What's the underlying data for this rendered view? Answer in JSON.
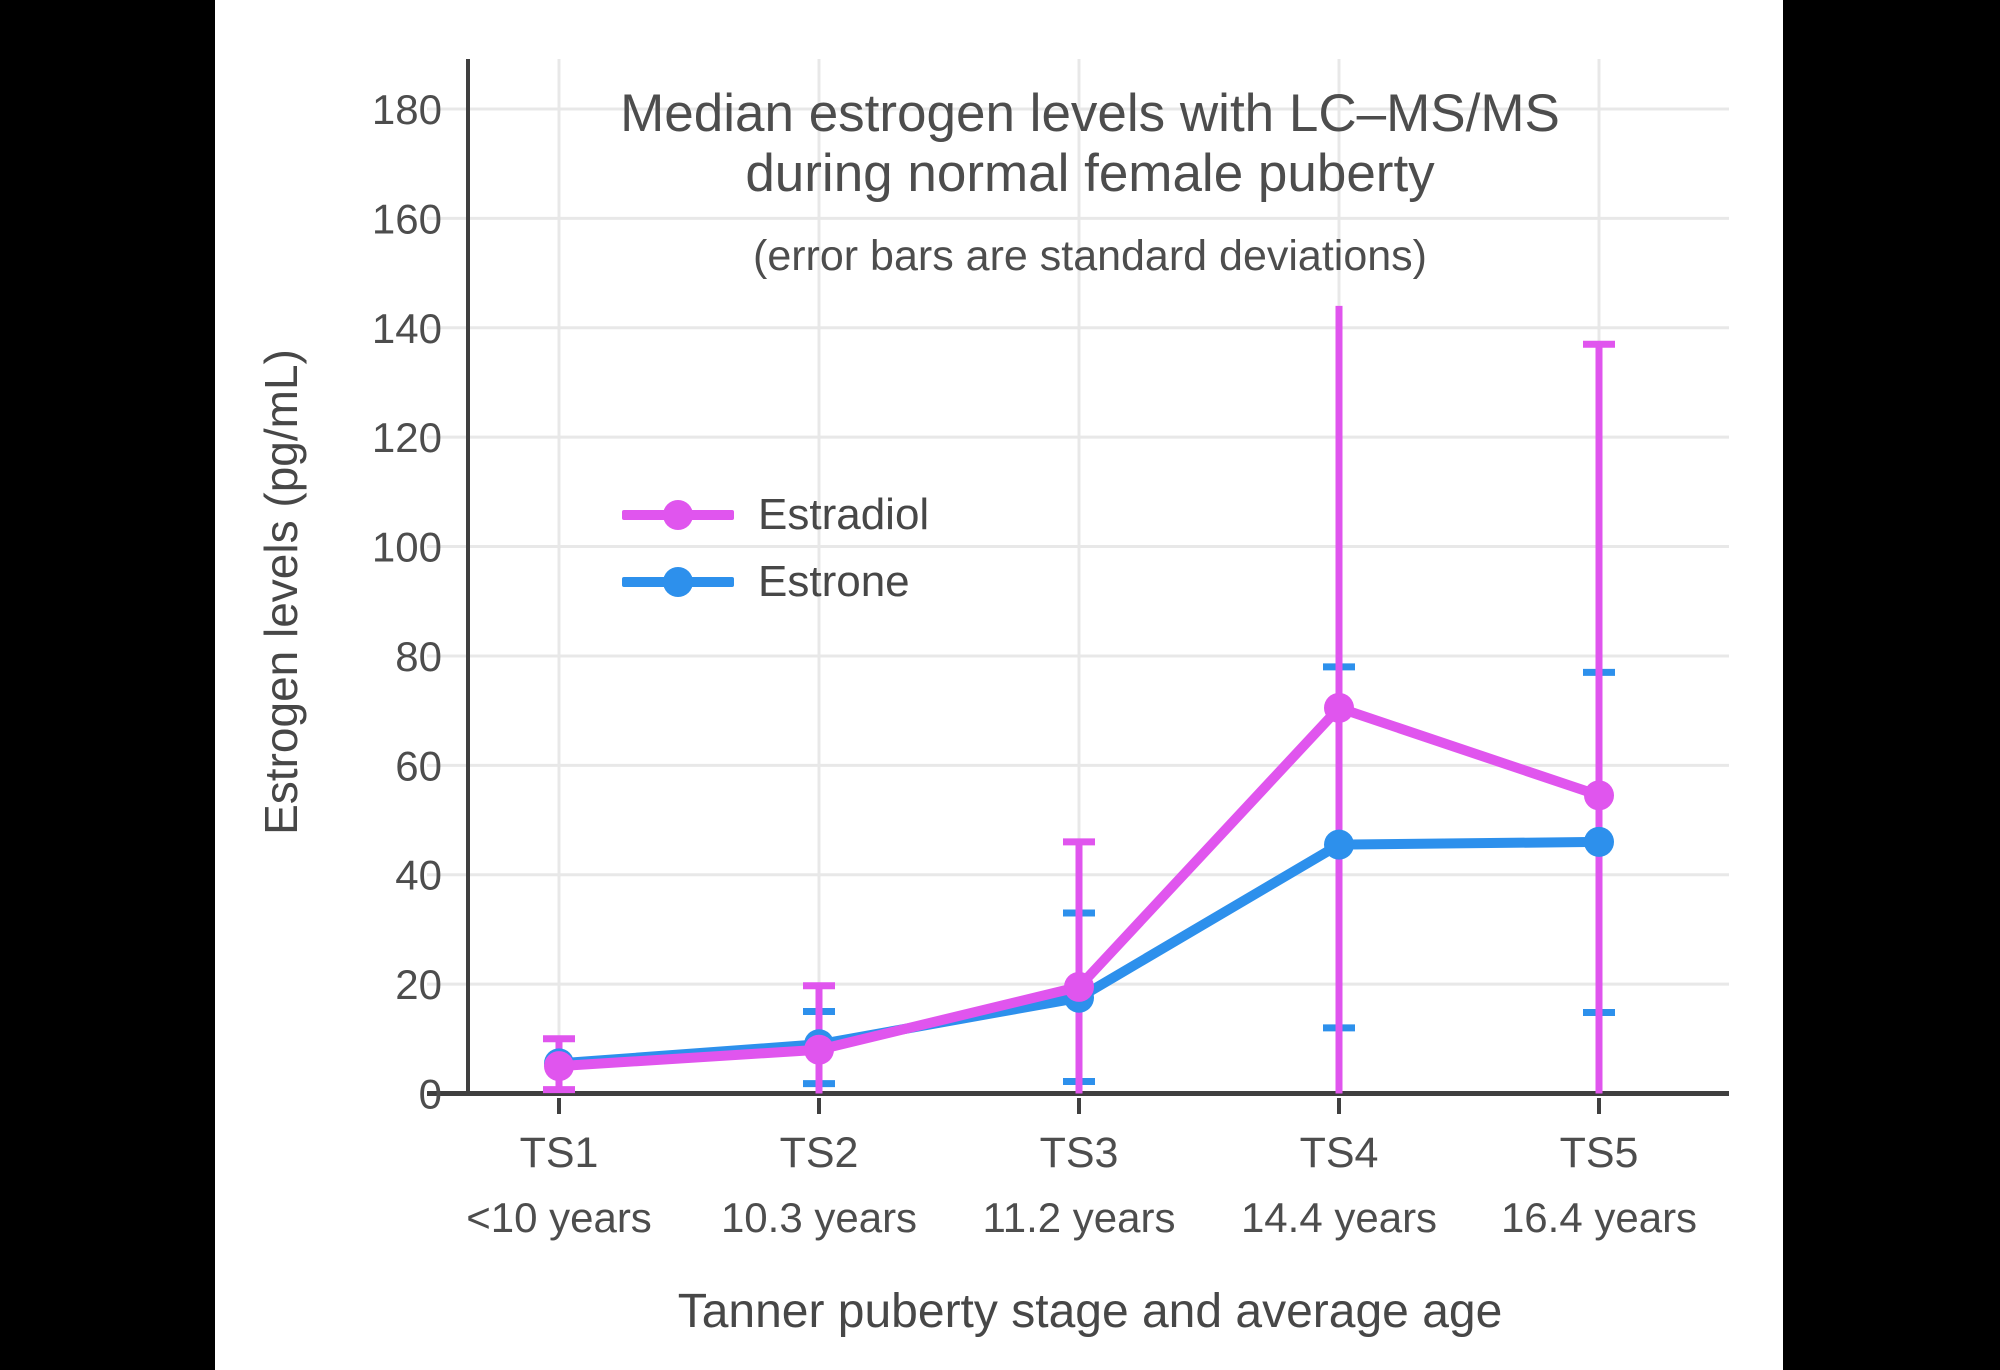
{
  "page": {
    "background": "#000000",
    "panel_background": "#ffffff"
  },
  "chart_data": {
    "type": "line",
    "title_line1": "Median estrogen levels with LC–MS/MS",
    "title_line2": "during normal female puberty",
    "subtitle": "(error bars are standard deviations)",
    "xlabel": "Tanner puberty stage and average age",
    "ylabel": "Estrogen levels (pg/mL)",
    "ylim": [
      0,
      190
    ],
    "yticks": [
      0,
      20,
      40,
      60,
      80,
      100,
      120,
      140,
      160,
      180
    ],
    "grid": true,
    "categories": [
      "TS1",
      "TS2",
      "TS3",
      "TS4",
      "TS5"
    ],
    "ages": [
      "<10 years",
      "10.3 years",
      "11.2 years",
      "14.4 years",
      "16.4 years"
    ],
    "legend": {
      "position": "inside-upper-left",
      "items": [
        "Estradiol",
        "Estrone"
      ]
    },
    "colors": {
      "estradiol": "#e055ee",
      "estrone": "#2d90ec",
      "axis": "#3f3f3f",
      "grid": "#e8e8e8",
      "text": "#4d4d4d"
    },
    "series": [
      {
        "name": "Estradiol",
        "color_key": "estradiol",
        "values": [
          5,
          8,
          19.5,
          70.5,
          54.5
        ],
        "error_upper": [
          10,
          19.7,
          46,
          144,
          137
        ],
        "error_lower": [
          0.7,
          0,
          0,
          0,
          0
        ],
        "cap_upper": [
          true,
          true,
          true,
          false,
          true
        ],
        "cap_lower": [
          true,
          false,
          false,
          false,
          false
        ]
      },
      {
        "name": "Estrone",
        "color_key": "estrone",
        "values": [
          5.5,
          9,
          17.5,
          45.5,
          46
        ],
        "error_upper": [
          null,
          15,
          33,
          78,
          77
        ],
        "error_lower": [
          null,
          1.8,
          2.2,
          12,
          14.8
        ],
        "cap_upper": [
          false,
          true,
          true,
          true,
          true
        ],
        "cap_lower": [
          false,
          true,
          true,
          true,
          true
        ]
      }
    ]
  }
}
